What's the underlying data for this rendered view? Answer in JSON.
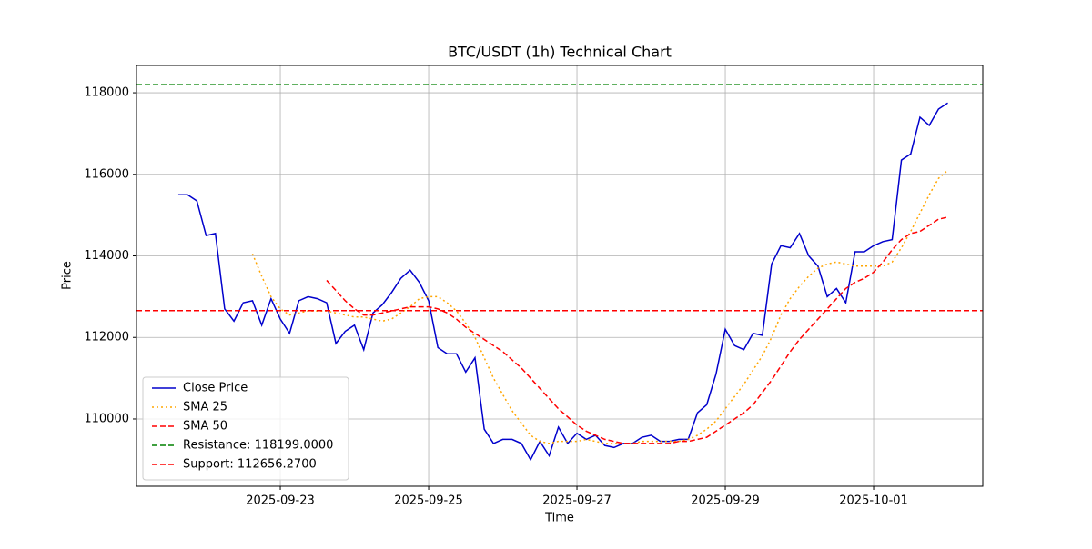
{
  "chart_data": {
    "type": "line",
    "title": "BTC/USDT (1h) Technical Chart",
    "x_label": "Time",
    "y_label": "Price",
    "x": [
      20352.625,
      20352.75,
      20352.875,
      20353.0,
      20353.125,
      20353.25,
      20353.375,
      20353.5,
      20353.625,
      20353.75,
      20353.875,
      20354.0,
      20354.125,
      20354.25,
      20354.375,
      20354.5,
      20354.625,
      20354.75,
      20354.875,
      20355.0,
      20355.125,
      20355.25,
      20355.375,
      20355.5,
      20355.625,
      20355.75,
      20355.875,
      20356.0,
      20356.125,
      20356.25,
      20356.375,
      20356.5,
      20356.625,
      20356.75,
      20356.875,
      20357.0,
      20357.125,
      20357.25,
      20357.375,
      20357.5,
      20357.625,
      20357.75,
      20357.875,
      20358.0,
      20358.125,
      20358.25,
      20358.375,
      20358.5,
      20358.625,
      20358.75,
      20358.875,
      20359.0,
      20359.125,
      20359.25,
      20359.375,
      20359.5,
      20359.625,
      20359.75,
      20359.875,
      20360.0,
      20360.125,
      20360.25,
      20360.375,
      20360.5,
      20360.625,
      20360.75,
      20360.875,
      20361.0,
      20361.125,
      20361.25,
      20361.375,
      20361.5,
      20361.625,
      20361.75,
      20361.875,
      20362.0,
      20362.125,
      20362.25,
      20362.375,
      20362.5,
      20362.625,
      20362.75,
      20362.875,
      20363.0
    ],
    "series": [
      {
        "name": "Close Price",
        "color": "#0000cc",
        "dash": "solid",
        "values": [
          115500,
          115500,
          115350,
          114500,
          114550,
          112700,
          112400,
          112850,
          112900,
          112300,
          112950,
          112450,
          112100,
          112900,
          113000,
          112950,
          112850,
          111850,
          112150,
          112300,
          111700,
          112600,
          112800,
          113100,
          113450,
          113650,
          113350,
          112900,
          111750,
          111600,
          111600,
          111150,
          111500,
          109750,
          109400,
          109500,
          109500,
          109400,
          109000,
          109450,
          109100,
          109800,
          109400,
          109650,
          109500,
          109600,
          109350,
          109300,
          109400,
          109400,
          109550,
          109600,
          109450,
          109450,
          109500,
          109500,
          110150,
          110350,
          111100,
          112200,
          111800,
          111700,
          112100,
          112050,
          113800,
          114250,
          114200,
          114550,
          114000,
          113750,
          113000,
          113200,
          112850,
          114100,
          114100,
          114250,
          114350,
          114400,
          116350,
          116500,
          117400,
          117200,
          117600,
          117750
        ]
      },
      {
        "name": "SMA 25",
        "color": "#ffa500",
        "dash": "dotted",
        "values": [
          null,
          null,
          null,
          null,
          null,
          null,
          null,
          null,
          114050,
          113500,
          113000,
          112700,
          112550,
          112600,
          112650,
          112650,
          112650,
          112600,
          112550,
          112500,
          112500,
          112450,
          112400,
          112450,
          112600,
          112750,
          112950,
          113000,
          113000,
          112850,
          112650,
          112350,
          112000,
          111500,
          111000,
          110600,
          110200,
          109900,
          109600,
          109450,
          109400,
          109450,
          109450,
          109450,
          109500,
          109450,
          109400,
          109400,
          109400,
          109400,
          109450,
          109450,
          109450,
          109450,
          109450,
          109500,
          109600,
          109750,
          109950,
          110250,
          110550,
          110850,
          111200,
          111550,
          112000,
          112550,
          112950,
          113250,
          113500,
          113700,
          113800,
          113850,
          113800,
          113750,
          113750,
          113750,
          113750,
          113850,
          114200,
          114600,
          115050,
          115500,
          115900,
          116100
        ]
      },
      {
        "name": "SMA 50",
        "color": "#ff0000",
        "dash": "dashed",
        "values": [
          null,
          null,
          null,
          null,
          null,
          null,
          null,
          null,
          null,
          null,
          null,
          null,
          null,
          null,
          null,
          null,
          113400,
          113150,
          112900,
          112700,
          112550,
          112550,
          112600,
          112650,
          112700,
          112750,
          112750,
          112750,
          112700,
          112600,
          112450,
          112250,
          112100,
          111950,
          111800,
          111650,
          111450,
          111250,
          111000,
          110750,
          110500,
          110250,
          110050,
          109850,
          109700,
          109600,
          109500,
          109450,
          109400,
          109400,
          109400,
          109400,
          109400,
          109400,
          109450,
          109450,
          109500,
          109550,
          109700,
          109850,
          110000,
          110150,
          110350,
          110650,
          110950,
          111300,
          111650,
          111950,
          112200,
          112450,
          112700,
          112950,
          113200,
          113350,
          113450,
          113600,
          113850,
          114150,
          114400,
          114550,
          114600,
          114750,
          114900,
          114950
        ]
      }
    ],
    "hlines": [
      {
        "name": "Resistance: 118199.0000",
        "value": 118199,
        "color": "#008000"
      },
      {
        "name": "Support: 112656.2700",
        "value": 112656.27,
        "color": "#ff0000"
      }
    ],
    "xlim": [
      20352.061,
      20363.472
    ],
    "ylim": [
      108350,
      118670
    ],
    "xticks": [
      {
        "value": 20354,
        "label": "2025-09-23"
      },
      {
        "value": 20356,
        "label": "2025-09-25"
      },
      {
        "value": 20358,
        "label": "2025-09-27"
      },
      {
        "value": 20360,
        "label": "2025-09-29"
      },
      {
        "value": 20362,
        "label": "2025-10-01"
      }
    ],
    "yticks": [
      110000,
      112000,
      114000,
      116000,
      118000
    ],
    "grid": true,
    "legend": "lower left"
  }
}
